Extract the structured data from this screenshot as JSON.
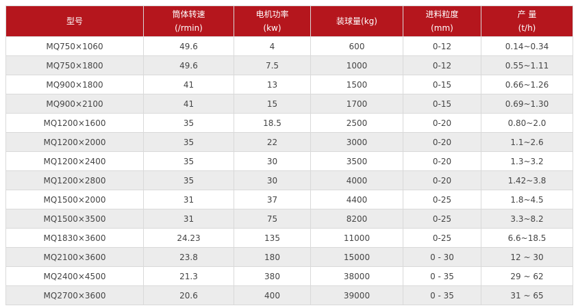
{
  "colors": {
    "header_bg": "#b5161d",
    "alt_row_bg": "#ececec"
  },
  "headers": [
    {
      "line1": "型号",
      "line2": ""
    },
    {
      "line1": "筒体转速",
      "line2": "(/rmin)"
    },
    {
      "line1": "电机功率",
      "line2": "(kw)"
    },
    {
      "line1": "装球量(kg)",
      "line2": ""
    },
    {
      "line1": "进料粒度",
      "line2": "(mm)"
    },
    {
      "line1": "产 量",
      "line2": "(t/h)"
    }
  ],
  "rows": [
    [
      "MQ750×1060",
      "49.6",
      "4",
      "600",
      "0-12",
      "0.14~0.34"
    ],
    [
      "MQ750×1800",
      "49.6",
      "7.5",
      "1000",
      "0-12",
      "0.55~1.11"
    ],
    [
      "MQ900×1800",
      "41",
      "13",
      "1500",
      "0-15",
      "0.66~1.26"
    ],
    [
      "MQ900×2100",
      "41",
      "15",
      "1700",
      "0-15",
      "0.69~1.30"
    ],
    [
      "MQ1200×1600",
      "35",
      "18.5",
      "2500",
      "0-20",
      "0.80~2.0"
    ],
    [
      "MQ1200×2000",
      "35",
      "22",
      "3000",
      "0-20",
      "1.1~2.6"
    ],
    [
      "MQ1200×2400",
      "35",
      "30",
      "3500",
      "0-20",
      "1.3~3.2"
    ],
    [
      "MQ1200×2800",
      "35",
      "30",
      "4000",
      "0-20",
      "1.42~3.8"
    ],
    [
      "MQ1500×2000",
      "31",
      "37",
      "4400",
      "0-25",
      "1.8~4.5"
    ],
    [
      "MQ1500×3500",
      "31",
      "75",
      "8200",
      "0-25",
      "3.3~8.2"
    ],
    [
      "MQ1830×3600",
      "24.23",
      "135",
      "11000",
      "0-25",
      "6.6~18.5"
    ],
    [
      "MQ2100×3600",
      "23.8",
      "180",
      "15000",
      "0 - 30",
      "12 ~ 30"
    ],
    [
      "MQ2400×4500",
      "21.3",
      "380",
      "38000",
      "0 - 35",
      "29 ~ 62"
    ],
    [
      "MQ2700×3600",
      "20.6",
      "400",
      "39000",
      "0 - 35",
      "31 ~ 65"
    ]
  ]
}
